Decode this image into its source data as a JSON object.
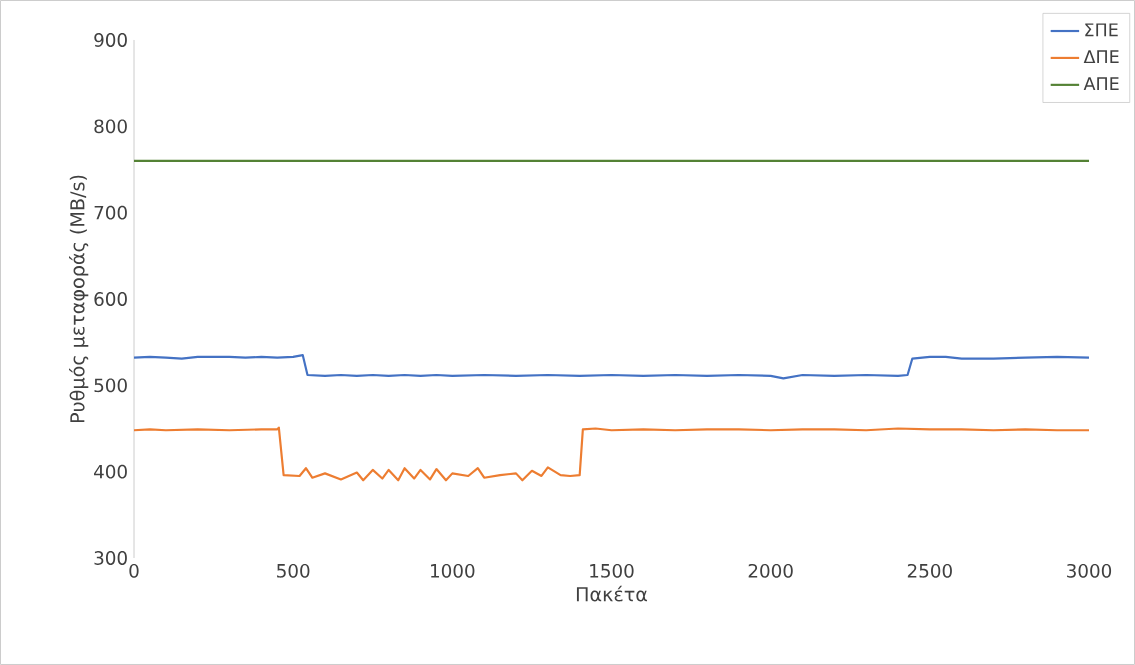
{
  "chart_data": {
    "type": "line",
    "xlabel": "Πακέτα",
    "ylabel": "Ρυθμός μεταφοράς (MB/s)",
    "xlim": [
      0,
      3000
    ],
    "ylim": [
      300,
      900
    ],
    "xticks": [
      0,
      500,
      1000,
      1500,
      2000,
      2500,
      3000
    ],
    "yticks": [
      300,
      400,
      500,
      600,
      700,
      800,
      900
    ],
    "grid": false,
    "legend": "top right",
    "marker": "none",
    "line_style": "solid",
    "series": [
      {
        "name": "ΣΠΕ",
        "color": "#4472c4",
        "x": [
          0,
          50,
          100,
          150,
          200,
          250,
          300,
          350,
          400,
          450,
          500,
          530,
          545,
          600,
          650,
          700,
          750,
          800,
          850,
          900,
          950,
          1000,
          1100,
          1200,
          1300,
          1400,
          1500,
          1600,
          1700,
          1800,
          1900,
          2000,
          2040,
          2100,
          2200,
          2300,
          2400,
          2430,
          2445,
          2500,
          2550,
          2600,
          2700,
          2800,
          2900,
          3000
        ],
        "values": [
          532,
          533,
          532,
          531,
          533,
          533,
          533,
          532,
          533,
          532,
          533,
          535,
          512,
          511,
          512,
          511,
          512,
          511,
          512,
          511,
          512,
          511,
          512,
          511,
          512,
          511,
          512,
          511,
          512,
          511,
          512,
          511,
          508,
          512,
          511,
          512,
          511,
          512,
          531,
          533,
          533,
          531,
          531,
          532,
          533,
          532
        ]
      },
      {
        "name": "ΔΠΕ",
        "color": "#ed7d31",
        "x": [
          0,
          50,
          100,
          200,
          300,
          400,
          450,
          455,
          470,
          520,
          540,
          560,
          600,
          650,
          700,
          720,
          750,
          780,
          800,
          830,
          850,
          880,
          900,
          930,
          950,
          980,
          1000,
          1050,
          1080,
          1100,
          1150,
          1200,
          1220,
          1250,
          1280,
          1300,
          1340,
          1370,
          1400,
          1410,
          1450,
          1500,
          1600,
          1700,
          1800,
          1900,
          2000,
          2100,
          2200,
          2300,
          2400,
          2500,
          2600,
          2700,
          2800,
          2900,
          3000
        ],
        "values": [
          448,
          449,
          448,
          449,
          448,
          449,
          449,
          451,
          396,
          395,
          404,
          393,
          398,
          391,
          399,
          390,
          402,
          392,
          402,
          390,
          404,
          392,
          402,
          391,
          403,
          390,
          398,
          395,
          404,
          393,
          396,
          398,
          390,
          401,
          395,
          405,
          396,
          395,
          396,
          449,
          450,
          448,
          449,
          448,
          449,
          449,
          448,
          449,
          449,
          448,
          450,
          449,
          449,
          448,
          449,
          448,
          448
        ]
      },
      {
        "name": "ΑΠΕ",
        "color": "#548235",
        "x": [
          0,
          500,
          1000,
          1500,
          2000,
          2500,
          3000
        ],
        "values": [
          760,
          760,
          760,
          760,
          760,
          760,
          760
        ]
      }
    ]
  }
}
